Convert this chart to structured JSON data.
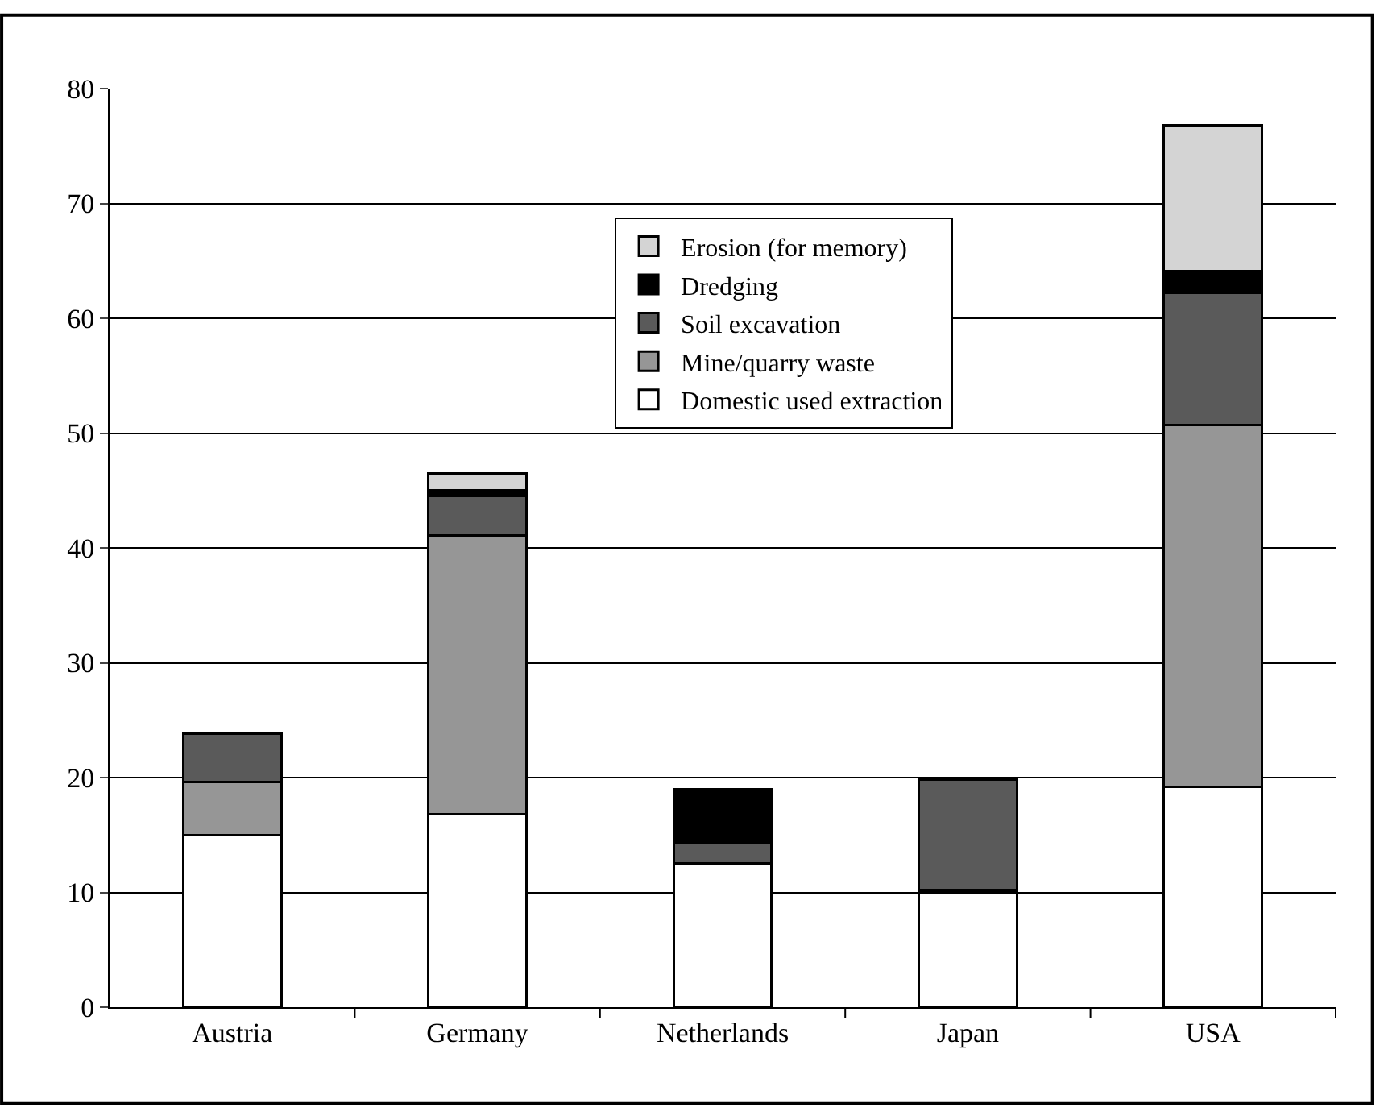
{
  "chart_data": {
    "type": "bar",
    "stacked": true,
    "categories": [
      "Austria",
      "Germany",
      "Netherlands",
      "Japan",
      "USA"
    ],
    "series": [
      {
        "name": "Domestic used extraction",
        "color": "#ffffff",
        "values": [
          15,
          16.8,
          12.5,
          10,
          19.2
        ]
      },
      {
        "name": "Mine/quarry waste",
        "color": "#969696",
        "values": [
          4.6,
          24.3,
          null,
          0.2,
          31.5
        ]
      },
      {
        "name": "Soil excavation",
        "color": "#5a5a5a",
        "values": [
          4.2,
          3.4,
          1.8,
          9.6,
          11.5
        ]
      },
      {
        "name": "Dredging",
        "color": "#000000",
        "values": [
          null,
          0.5,
          4.7,
          null,
          1.9
        ]
      },
      {
        "name": "Erosion (for memory)",
        "color": "#d4d4d4",
        "values": [
          null,
          1.5,
          null,
          null,
          12.7
        ]
      }
    ],
    "ylim": [
      0,
      80
    ],
    "yticks": [
      0,
      10,
      20,
      30,
      40,
      50,
      60,
      70,
      80
    ],
    "grid": "y",
    "legend": "top"
  }
}
